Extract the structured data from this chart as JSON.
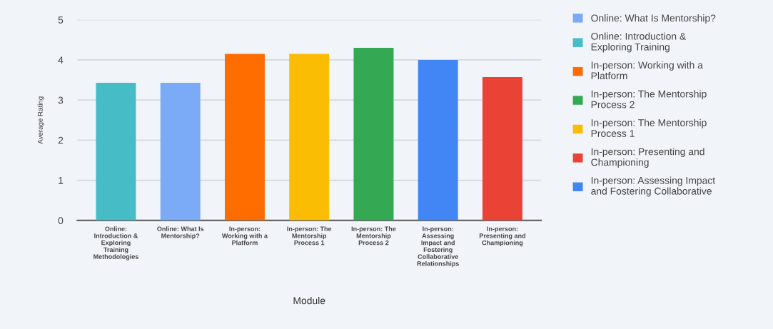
{
  "chart_data": {
    "type": "bar",
    "xlabel": "Module",
    "ylabel": "Average Rating",
    "categories": [
      "Online:\nIntroduction &\nExploring\nTraining\nMethodologies",
      "Online: What Is\nMentorship?",
      "In-person:\nWorking with a\nPlatform",
      "In-person: The\nMentorship\nProcess 1",
      "In-person: The\nMentorship\nProcess 2",
      "In-person:\nAssessing\nImpact and\nFostering\nCollaborative\nRelationships",
      "In-person:\nPresenting and\nChampioning"
    ],
    "series": [
      {
        "name": "Online: What Is Mentorship?",
        "color": "#7baaf7",
        "values": [
          null,
          3.43,
          null,
          null,
          null,
          null,
          null
        ]
      },
      {
        "name": "Online: Introduction &\nExploring Training",
        "color": "#46bdc6",
        "values": [
          3.43,
          null,
          null,
          null,
          null,
          null,
          null
        ]
      },
      {
        "name": "In-person: Working with a\nPlatform",
        "color": "#ff6d01",
        "values": [
          null,
          null,
          4.15,
          null,
          null,
          null,
          null
        ]
      },
      {
        "name": "In-person: The Mentorship\nProcess 2",
        "color": "#34a853",
        "values": [
          null,
          null,
          null,
          null,
          4.3,
          null,
          null
        ]
      },
      {
        "name": "In-person: The Mentorship\nProcess 1",
        "color": "#fbbc04",
        "values": [
          null,
          null,
          null,
          4.15,
          null,
          null,
          null
        ]
      },
      {
        "name": "In-person: Presenting and\nChampioning",
        "color": "#ea4335",
        "values": [
          null,
          null,
          null,
          null,
          null,
          null,
          3.57
        ]
      },
      {
        "name": "In-person: Assessing Impact\nand Fostering Collaborative",
        "color": "#4285f4",
        "values": [
          null,
          null,
          null,
          null,
          null,
          4.0,
          null
        ]
      }
    ],
    "ylim": [
      0,
      5
    ],
    "yticks": [
      0,
      1,
      2,
      3,
      4,
      5
    ],
    "grid": "y",
    "legend": "right"
  }
}
